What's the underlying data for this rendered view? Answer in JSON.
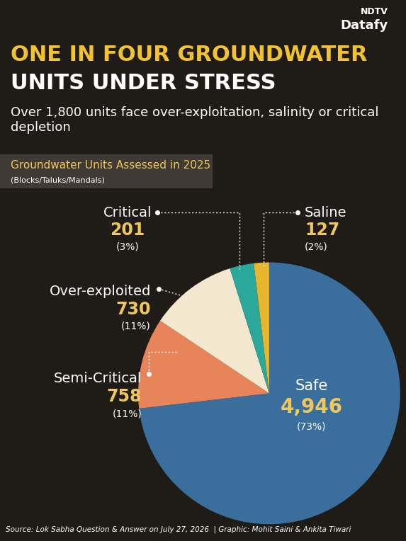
{
  "chart_data": {
    "type": "pie",
    "brand": [
      "NDTV",
      "Datafy"
    ],
    "title_lines": [
      "ONE IN FOUR GROUNDWATER",
      "UNITS UNDER STRESS"
    ],
    "subtitle": "Over 1,800 units face over-exploitation, salinity or critical depletion",
    "panel_title": "Groundwater Units Assessed in 2025",
    "panel_subtitle": "(Blocks/Taluks/Mandals)",
    "categories": [
      "Safe",
      "Semi-Critical",
      "Over-exploited",
      "Critical",
      "Saline"
    ],
    "values": [
      4946,
      758,
      730,
      201,
      127
    ],
    "value_labels": [
      "4,946",
      "758",
      "730",
      "201",
      "127"
    ],
    "percent_labels": [
      "(73%)",
      "(11%)",
      "(11%)",
      "(3%)",
      "(2%)"
    ],
    "colors": [
      "#3a6f9d",
      "#e8845a",
      "#f3e7d0",
      "#2aa89a",
      "#e8b52e"
    ],
    "data_labels": true,
    "source": "Source: Lok Sabha Question & Answer on July 27, 2026  | Graphic: Mohit Saini & Ankita Tiwari"
  }
}
